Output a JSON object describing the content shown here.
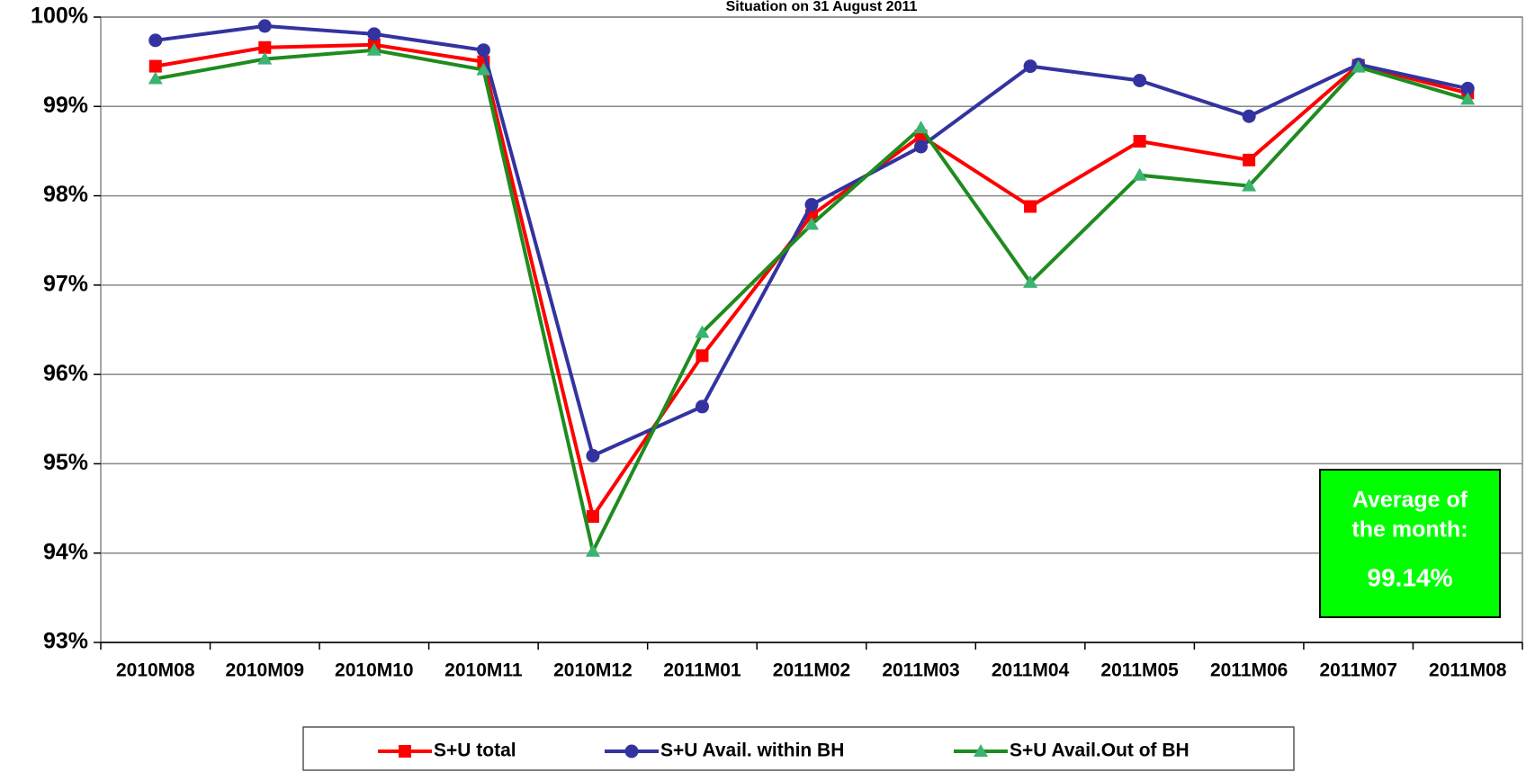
{
  "chart_data": {
    "type": "line",
    "subtitle": "Situation on 31 August 2011",
    "categories": [
      "2010M08",
      "2010M09",
      "2010M10",
      "2010M11",
      "2010M12",
      "2011M01",
      "2011M02",
      "2011M03",
      "2011M04",
      "2011M05",
      "2011M06",
      "2011M07",
      "2011M08"
    ],
    "series": [
      {
        "name": "S+U total",
        "color": "#ff0000",
        "marker": "square",
        "values": [
          99.45,
          99.66,
          99.69,
          99.5,
          94.41,
          96.21,
          97.78,
          98.67,
          97.88,
          98.61,
          98.4,
          99.46,
          99.15
        ]
      },
      {
        "name": "S+U Avail. within BH",
        "color": "#3333a0",
        "marker": "circle",
        "values": [
          99.74,
          99.9,
          99.81,
          99.63,
          95.09,
          95.64,
          97.9,
          98.55,
          99.45,
          99.29,
          98.89,
          99.47,
          99.2
        ]
      },
      {
        "name": "S+U Avail.Out of BH",
        "color": "#1e8c1e",
        "marker": "triangle",
        "values": [
          99.31,
          99.53,
          99.63,
          99.41,
          94.02,
          96.47,
          97.68,
          98.76,
          97.03,
          98.23,
          98.11,
          99.44,
          99.08
        ]
      }
    ],
    "ylim": [
      93,
      100
    ],
    "yticks": [
      {
        "value": 93,
        "label": "93%"
      },
      {
        "value": 94,
        "label": "94%"
      },
      {
        "value": 95,
        "label": "95%"
      },
      {
        "value": 96,
        "label": "96%"
      },
      {
        "value": 97,
        "label": "97%"
      },
      {
        "value": 98,
        "label": "98%"
      },
      {
        "value": 99,
        "label": "99%"
      },
      {
        "value": 100,
        "label": "100%"
      }
    ],
    "grid": true,
    "legend": "bottom",
    "annotation": {
      "lines": [
        "Average of",
        "the month:"
      ],
      "value": "99.14%",
      "color": "#00ff00"
    }
  }
}
